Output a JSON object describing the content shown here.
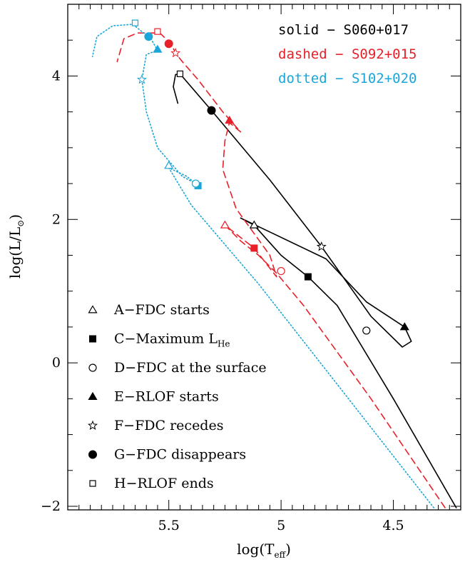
{
  "chart_data": {
    "type": "line",
    "xlabel": {
      "main": "log(T",
      "sub": "eff",
      "close": ")"
    },
    "ylabel": {
      "main": "log(L/L",
      "sub": "⊙",
      "close": ")"
    },
    "xlim": [
      5.95,
      4.2
    ],
    "ylim": [
      -2.05,
      5.0
    ],
    "x_ticks": [
      5.5,
      5,
      4.5
    ],
    "x_tick_labels": [
      "5.5",
      "5",
      "4.5"
    ],
    "y_ticks": [
      4,
      2,
      0,
      -2
    ],
    "y_tick_labels": [
      "4",
      "2",
      "0",
      "−2"
    ],
    "grid": false,
    "colors": {
      "solid": "#000000",
      "dashed": "#e8202a",
      "dotted": "#1aa6d8"
    },
    "series_legend": [
      {
        "label": "solid  −  S060+017",
        "color": "#000000",
        "style": "solid"
      },
      {
        "label": "dashed  −  S092+015",
        "color": "#e8202a",
        "style": "dashed"
      },
      {
        "label": "dotted  −  S102+020",
        "color": "#1aa6d8",
        "style": "dotted"
      }
    ],
    "marker_legend": [
      {
        "symbol": "open-triangle",
        "label": "A−FDC starts"
      },
      {
        "symbol": "filled-square",
        "label": "C−Maximum L",
        "sub": "He"
      },
      {
        "symbol": "open-circle",
        "label": "D−FDC at the surface"
      },
      {
        "symbol": "filled-triangle",
        "label": "E−RLOF starts"
      },
      {
        "symbol": "open-star",
        "label": "F−FDC recedes"
      },
      {
        "symbol": "filled-circle",
        "label": "G−FDC disappears"
      },
      {
        "symbol": "open-square",
        "label": "H−RLOF ends"
      }
    ],
    "series": [
      {
        "style": "solid",
        "points": [
          [
            4.22,
            -2.02
          ],
          [
            4.5,
            -0.5
          ],
          [
            4.75,
            0.8
          ],
          [
            4.88,
            1.2
          ],
          [
            5.0,
            1.5
          ],
          [
            5.12,
            1.92
          ],
          [
            5.18,
            2.02
          ],
          [
            5.1,
            1.9
          ],
          [
            4.8,
            1.45
          ],
          [
            4.62,
            0.85
          ],
          [
            4.45,
            0.5
          ],
          [
            4.42,
            0.3
          ],
          [
            4.46,
            0.22
          ],
          [
            4.6,
            0.65
          ],
          [
            4.82,
            1.62
          ],
          [
            5.05,
            2.55
          ],
          [
            5.31,
            3.52
          ],
          [
            5.45,
            4.03
          ],
          [
            5.47,
            4.02
          ],
          [
            5.48,
            3.85
          ],
          [
            5.46,
            3.62
          ]
        ],
        "markers": [
          {
            "symbol": "open-triangle",
            "x": 5.12,
            "y": 1.92
          },
          {
            "symbol": "filled-square",
            "x": 4.88,
            "y": 1.2
          },
          {
            "symbol": "open-circle",
            "x": 4.62,
            "y": 0.45
          },
          {
            "symbol": "filled-triangle",
            "x": 4.45,
            "y": 0.5
          },
          {
            "symbol": "open-star",
            "x": 4.82,
            "y": 1.62
          },
          {
            "symbol": "filled-circle",
            "x": 5.31,
            "y": 3.52
          },
          {
            "symbol": "open-square",
            "x": 5.45,
            "y": 4.03
          }
        ]
      },
      {
        "style": "dashed",
        "points": [
          [
            4.27,
            -2.02
          ],
          [
            4.6,
            -0.5
          ],
          [
            4.9,
            0.8
          ],
          [
            5.02,
            1.25
          ],
          [
            5.1,
            1.5
          ],
          [
            5.18,
            1.7
          ],
          [
            5.25,
            1.92
          ],
          [
            5.12,
            1.6
          ],
          [
            5.02,
            1.2
          ],
          [
            5.05,
            1.5
          ],
          [
            5.2,
            2.15
          ],
          [
            5.26,
            2.7
          ],
          [
            5.25,
            3.1
          ],
          [
            5.23,
            3.35
          ],
          [
            5.18,
            3.22
          ],
          [
            5.26,
            3.5
          ],
          [
            5.37,
            3.95
          ],
          [
            5.44,
            4.2
          ],
          [
            5.47,
            4.32
          ],
          [
            5.49,
            4.45
          ],
          [
            5.54,
            4.6
          ],
          [
            5.64,
            4.6
          ],
          [
            5.7,
            4.52
          ],
          [
            5.73,
            4.2
          ]
        ],
        "markers": [
          {
            "symbol": "open-triangle",
            "x": 5.25,
            "y": 1.92
          },
          {
            "symbol": "filled-square",
            "x": 5.12,
            "y": 1.6
          },
          {
            "symbol": "open-circle",
            "x": 5.0,
            "y": 1.28
          },
          {
            "symbol": "filled-triangle",
            "x": 5.23,
            "y": 3.38
          },
          {
            "symbol": "open-star",
            "x": 5.47,
            "y": 4.32
          },
          {
            "symbol": "filled-circle",
            "x": 5.5,
            "y": 4.45
          },
          {
            "symbol": "open-square",
            "x": 5.55,
            "y": 4.62
          }
        ]
      },
      {
        "style": "dotted",
        "points": [
          [
            4.32,
            -2.02
          ],
          [
            4.7,
            -0.5
          ],
          [
            5.1,
            1.1
          ],
          [
            5.4,
            2.2
          ],
          [
            5.5,
            2.72
          ],
          [
            5.42,
            2.6
          ],
          [
            5.38,
            2.5
          ],
          [
            5.44,
            2.6
          ],
          [
            5.55,
            3.0
          ],
          [
            5.6,
            3.5
          ],
          [
            5.62,
            3.95
          ],
          [
            5.6,
            4.3
          ],
          [
            5.55,
            4.36
          ],
          [
            5.58,
            4.52
          ],
          [
            5.66,
            4.72
          ],
          [
            5.75,
            4.7
          ],
          [
            5.82,
            4.55
          ],
          [
            5.84,
            4.27
          ]
        ],
        "markers": [
          {
            "symbol": "open-triangle",
            "x": 5.5,
            "y": 2.75
          },
          {
            "symbol": "filled-square",
            "x": 5.37,
            "y": 2.47
          },
          {
            "symbol": "open-circle",
            "x": 5.38,
            "y": 2.5
          },
          {
            "symbol": "filled-triangle",
            "x": 5.55,
            "y": 4.37
          },
          {
            "symbol": "open-star",
            "x": 5.62,
            "y": 3.95
          },
          {
            "symbol": "filled-circle",
            "x": 5.59,
            "y": 4.55
          },
          {
            "symbol": "open-square",
            "x": 5.65,
            "y": 4.74
          }
        ]
      }
    ]
  }
}
